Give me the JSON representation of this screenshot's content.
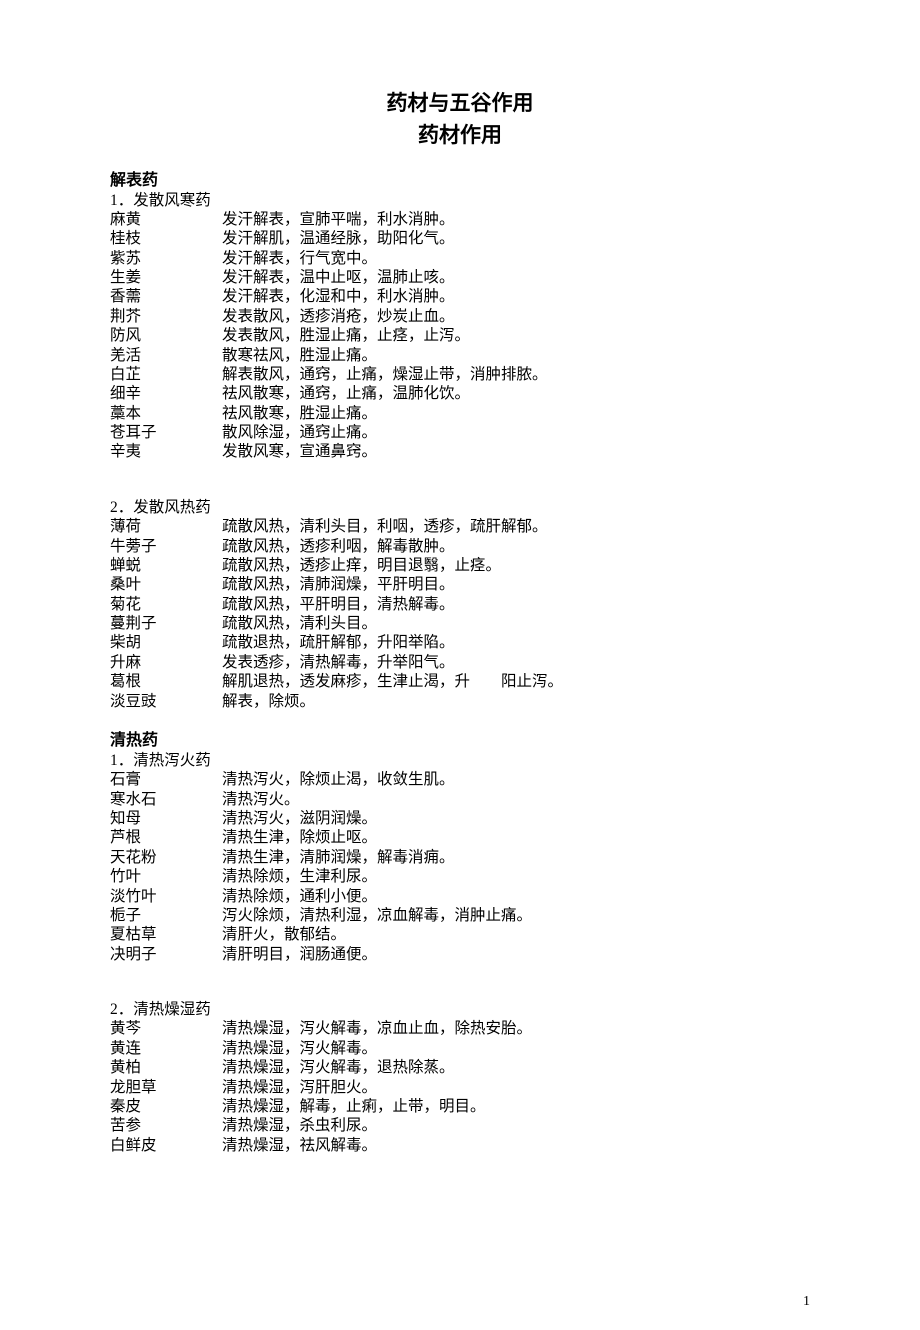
{
  "title": "药材与五谷作用",
  "subtitle": "药材作用",
  "page_number": "1",
  "sections": [
    {
      "category": "解表药",
      "groups": [
        {
          "heading": "1．发散风寒药",
          "items": [
            {
              "name": "麻黄",
              "effect": "发汗解表，宣肺平喘，利水消肿。"
            },
            {
              "name": "桂枝",
              "effect": "发汗解肌，温通经脉，助阳化气。"
            },
            {
              "name": "紫苏",
              "effect": "发汗解表，行气宽中。"
            },
            {
              "name": "生姜",
              "effect": "发汗解表，温中止呕，温肺止咳。"
            },
            {
              "name": "香薷",
              "effect": "发汗解表，化湿和中，利水消肿。"
            },
            {
              "name": "荆芥",
              "effect": "发表散风，透疹消疮，炒炭止血。"
            },
            {
              "name": "防风",
              "effect": "发表散风，胜湿止痛，止痉，止泻。"
            },
            {
              "name": "羌活",
              "effect": "散寒祛风，胜湿止痛。"
            },
            {
              "name": "白芷",
              "effect": "解表散风，通窍，止痛，燥湿止带，消肿排脓。"
            },
            {
              "name": "细辛",
              "effect": "祛风散寒，通窍，止痛，温肺化饮。"
            },
            {
              "name": "藁本",
              "effect": "祛风散寒，胜湿止痛。"
            },
            {
              "name": "苍耳子",
              "effect": "散风除湿，通窍止痛。"
            },
            {
              "name": "辛夷",
              "effect": "发散风寒，宣通鼻窍。"
            }
          ]
        },
        {
          "heading": "2．发散风热药",
          "items": [
            {
              "name": "薄荷",
              "effect": "疏散风热，清利头目，利咽，透疹，疏肝解郁。"
            },
            {
              "name": "牛蒡子",
              "effect": "疏散风热，透疹利咽，解毒散肿。"
            },
            {
              "name": "蝉蜕",
              "effect": "疏散风热，透疹止痒，明目退翳，止痉。"
            },
            {
              "name": "桑叶",
              "effect": "疏散风热，清肺润燥，平肝明目。"
            },
            {
              "name": "菊花",
              "effect": "疏散风热，平肝明目，清热解毒。"
            },
            {
              "name": "蔓荆子",
              "effect": "疏散风热，清利头目。"
            },
            {
              "name": "柴胡",
              "effect": "疏散退热，疏肝解郁，升阳举陷。"
            },
            {
              "name": "升麻",
              "effect": "发表透疹，清热解毒，升举阳气。"
            },
            {
              "name": "葛根",
              "effect": "解肌退热，透发麻疹，生津止渴，升　　阳止泻。"
            },
            {
              "name": "淡豆豉",
              "effect": "解表，除烦。"
            }
          ]
        }
      ]
    },
    {
      "category": "清热药",
      "groups": [
        {
          "heading": "1．清热泻火药",
          "items": [
            {
              "name": "石膏",
              "effect": "清热泻火，除烦止渴，收敛生肌。"
            },
            {
              "name": "寒水石",
              "effect": "清热泻火。"
            },
            {
              "name": "知母",
              "effect": "清热泻火，滋阴润燥。"
            },
            {
              "name": "芦根",
              "effect": "清热生津，除烦止呕。"
            },
            {
              "name": "天花粉",
              "effect": "清热生津，清肺润燥，解毒消痈。"
            },
            {
              "name": "竹叶",
              "effect": "清热除烦，生津利尿。"
            },
            {
              "name": "淡竹叶",
              "effect": "清热除烦，通利小便。"
            },
            {
              "name": "栀子",
              "effect": "泻火除烦，清热利湿，凉血解毒，消肿止痛。"
            },
            {
              "name": "夏枯草",
              "effect": "清肝火，散郁结。"
            },
            {
              "name": "决明子",
              "effect": "清肝明目，润肠通便。"
            }
          ]
        },
        {
          "heading": "2．清热燥湿药",
          "items": [
            {
              "name": "黄芩",
              "effect": "清热燥湿，泻火解毒，凉血止血，除热安胎。"
            },
            {
              "name": "黄连",
              "effect": "清热燥湿，泻火解毒。"
            },
            {
              "name": "黄柏",
              "effect": "清热燥湿，泻火解毒，退热除蒸。"
            },
            {
              "name": "龙胆草",
              "effect": "清热燥湿，泻肝胆火。"
            },
            {
              "name": "秦皮",
              "effect": "清热燥湿，解毒，止痢，止带，明目。"
            },
            {
              "name": "苦参",
              "effect": "清热燥湿，杀虫利尿。"
            },
            {
              "name": "白鲜皮",
              "effect": "清热燥湿，祛风解毒。"
            }
          ]
        }
      ]
    }
  ]
}
